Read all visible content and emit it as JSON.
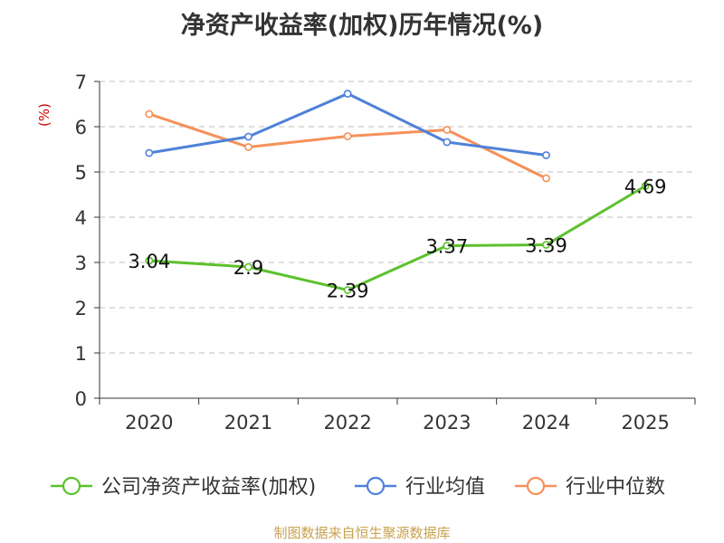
{
  "chart_data": {
    "type": "line",
    "title": "净资产收益率(加权)历年情况(%)",
    "ylabel": "(%)",
    "xlabel": "",
    "ylim": [
      0,
      7
    ],
    "yticks": [
      0,
      1,
      2,
      3,
      4,
      5,
      6,
      7
    ],
    "grid": true,
    "legend_position": "bottom",
    "categories": [
      "2020",
      "2021",
      "2022",
      "2023",
      "2024",
      "2025"
    ],
    "series": [
      {
        "name": "公司净资产收益率(加权)",
        "color": "#5cc12d",
        "values": [
          3.04,
          2.9,
          2.39,
          3.37,
          3.39,
          4.69
        ],
        "labels": [
          "3.04",
          "2.9",
          "2.39",
          "3.37",
          "3.39",
          "4.69"
        ]
      },
      {
        "name": "行业均值",
        "color": "#4f81d9",
        "values": [
          5.42,
          5.78,
          6.73,
          5.66,
          5.37,
          null
        ]
      },
      {
        "name": "行业中位数",
        "color": "#f5915a",
        "values": [
          6.28,
          5.55,
          5.79,
          5.93,
          4.86,
          null
        ]
      }
    ]
  },
  "source": "制图数据来自恒生聚源数据库"
}
